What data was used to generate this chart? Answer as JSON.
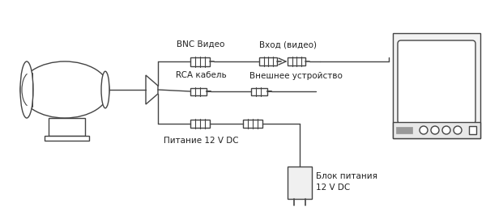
{
  "bg_color": "#ffffff",
  "line_color": "#444444",
  "text_color": "#222222",
  "labels": {
    "bnc": "BNC Видео",
    "rca": "RCA кабель",
    "power": "Питание 12 V DC",
    "input": "Вход (видео)",
    "external": "Внешнее устройство",
    "block_line1": "Блок питания",
    "block_line2": "12 V DC"
  },
  "figsize": [
    6.0,
    2.61
  ],
  "dpi": 100
}
